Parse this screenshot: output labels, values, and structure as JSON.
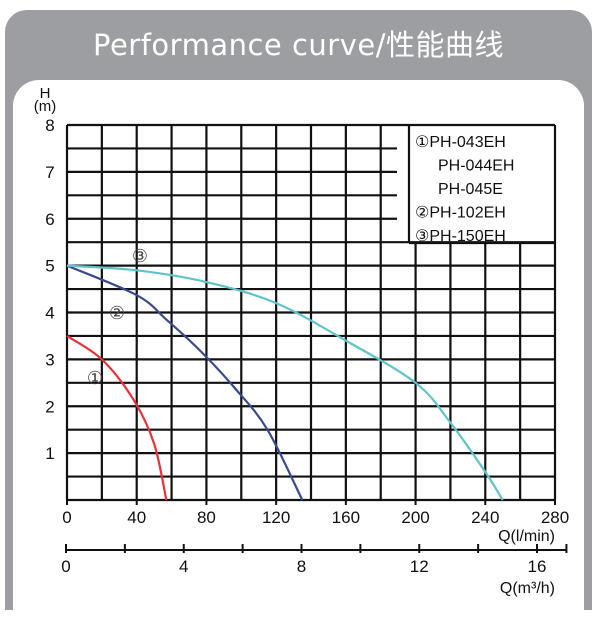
{
  "title": "Performance curve/性能曲线",
  "chart_data": {
    "type": "line",
    "title": "Performance curve/性能曲线",
    "ylabel": [
      "H",
      "(m)"
    ],
    "xlabel": "Q(l/min)",
    "x2label": "Q(m³/h)",
    "xlim": [
      0,
      280
    ],
    "ylim": [
      0,
      8
    ],
    "x2lim": [
      0,
      16
    ],
    "xticks": [
      0,
      40,
      80,
      120,
      160,
      200,
      240,
      280
    ],
    "yticks": [
      1,
      2,
      3,
      4,
      5,
      6,
      7,
      8
    ],
    "x2ticks": [
      0,
      4,
      8,
      12,
      16
    ],
    "grid": true,
    "legend_placement": "top-right",
    "legend": [
      "①PH-043EH",
      "PH-044EH",
      "PH-045E",
      "②PH-102EH",
      "③PH-150EH"
    ],
    "series": [
      {
        "name": "①",
        "color": "#e8333a",
        "x": [
          0,
          20,
          38,
          50,
          57
        ],
        "y": [
          3.5,
          3.0,
          2.15,
          1.2,
          0
        ]
      },
      {
        "name": "②",
        "color": "#3a4a8e",
        "x": [
          0,
          40,
          57,
          76,
          96,
          115,
          135
        ],
        "y": [
          5.0,
          4.37,
          3.85,
          3.2,
          2.4,
          1.5,
          0
        ]
      },
      {
        "name": "③",
        "color": "#5ec4c8",
        "x": [
          0,
          40,
          80,
          120,
          160,
          200,
          220,
          240,
          250
        ],
        "y": [
          5.0,
          4.9,
          4.65,
          4.2,
          3.4,
          2.5,
          1.65,
          0.6,
          0
        ]
      }
    ]
  }
}
